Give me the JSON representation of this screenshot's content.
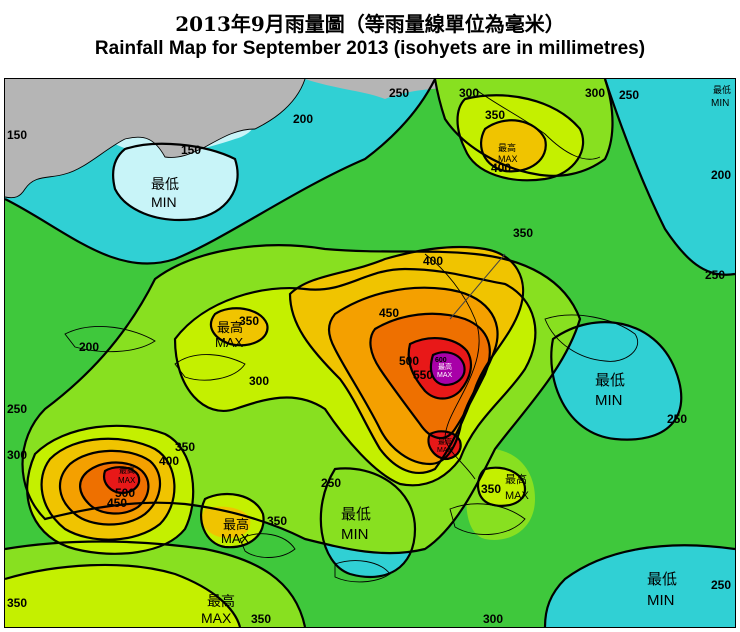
{
  "title_cn": "2013年9月雨量圖（等雨量線單位為毫米）",
  "title_en": "Rainfall Map for September 2013 (isohyets are in millimetres)",
  "colors": {
    "grey": "#b5b5b5",
    "c150": "#c8f4f8",
    "c200": "#30d0d4",
    "c250": "#3fc83c",
    "c300": "#88e020",
    "c350": "#c4f000",
    "c400": "#f0c400",
    "c450": "#f4a000",
    "c500": "#ee7000",
    "c550": "#e81818",
    "c600": "#a800a8"
  },
  "texts": {
    "max_cn": "最高",
    "max_en": "MAX",
    "min_cn": "最低",
    "min_en": "MIN",
    "small_max_cn": "最高",
    "small_max_en": "MAX"
  },
  "contour_labels": {
    "v150": "150",
    "v200": "200",
    "v250": "250",
    "v300": "300",
    "v350": "350",
    "v400": "400",
    "v450": "450",
    "v500": "500",
    "v550": "550",
    "v600": "600"
  }
}
